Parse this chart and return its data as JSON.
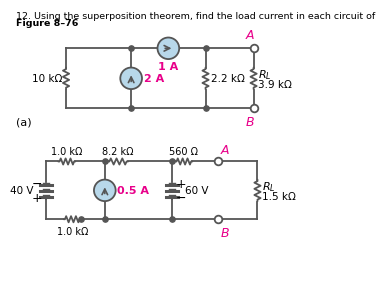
{
  "title_line1": "12. Using the superposition theorem, find the load current in each circuit of",
  "title_bold": "Figure 8–76",
  "fig_label": "Figure 8–76",
  "circuit_a_label": "(a)",
  "bg_color": "#ffffff",
  "line_color": "#555555",
  "source_fill": "#b8d8ea",
  "magenta": "#e8008a",
  "circuit_a": {
    "R1_label": "10 kΩ",
    "CS1_label": "1 A",
    "CS2_label": "2 A",
    "R2_label": "2.2 kΩ",
    "RL_label": "R_L",
    "RL_val": "3.9 kΩ",
    "node_A": "A",
    "node_B": "B"
  },
  "circuit_b": {
    "VS1_label": "40 V",
    "R1_label": "1.0 kΩ",
    "R2_label": "8.2 kΩ",
    "R3_label": "560 Ω",
    "CS_label": "0.5 A",
    "VS2_label": "60 V",
    "RL_label": "R_L",
    "RL_val": "1.5 kΩ",
    "Rb_label": "1.0 kΩ",
    "node_A": "A",
    "node_B": "B"
  }
}
